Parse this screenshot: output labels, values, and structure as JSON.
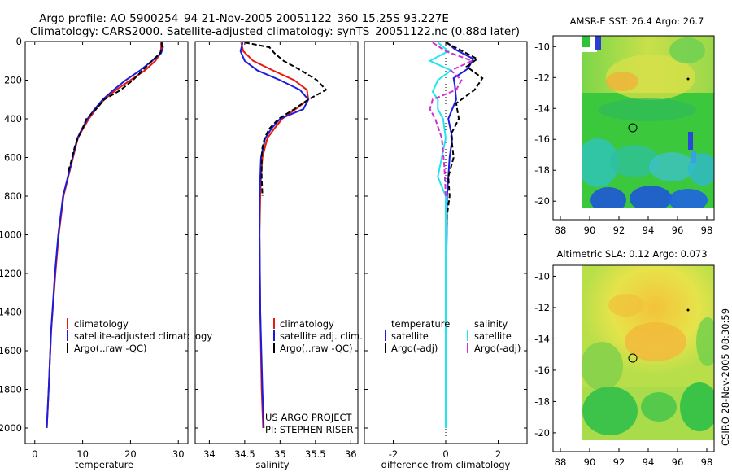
{
  "header": {
    "title_line1": "Argo profile: AO 5900254_94 21-Nov-2005 20051122_360 15.25S 93.227E",
    "title_line2": "Climatology: CARS2000. Satellite-adjusted climatology: synTS_20051122.nc (0.88d later)"
  },
  "colors": {
    "climatology": "#e8190f",
    "satellite": "#1c1cde",
    "argo": "#000000",
    "sat_salinity": "#22e6ee",
    "argo_salinity_adj": "#d22ed2"
  },
  "chart_data": [
    {
      "type": "line",
      "name": "temperature-profile",
      "xlabel": "temperature",
      "ylabel": "",
      "xlim": [
        -2,
        32
      ],
      "ylim": [
        0,
        2080
      ],
      "xticks": [
        0,
        10,
        20,
        30
      ],
      "yticks": [
        0,
        200,
        400,
        600,
        800,
        1000,
        1200,
        1400,
        1600,
        1800,
        2000
      ],
      "y_inverted": true,
      "legend": [
        "climatology",
        "satellite-adjusted climatology",
        "Argo(..raw -QC)"
      ],
      "series": [
        {
          "name": "climatology",
          "color": "#e8190f",
          "dash": "solid",
          "x": [
            26.4,
            26.4,
            26.3,
            25.2,
            23.0,
            20.0,
            17.0,
            14.5,
            12.8,
            11.3,
            10.1,
            9.0,
            8.0,
            7.0,
            6.0,
            5.0,
            4.3,
            3.4,
            2.9,
            2.5
          ],
          "y": [
            5,
            30,
            60,
            100,
            150,
            200,
            250,
            300,
            350,
            400,
            450,
            500,
            600,
            700,
            800,
            1000,
            1200,
            1500,
            1800,
            2000
          ]
        },
        {
          "name": "satellite-adjusted climatology",
          "color": "#1c1cde",
          "dash": "solid",
          "x": [
            26.6,
            26.8,
            26.4,
            24.5,
            22.0,
            19.0,
            16.5,
            14.2,
            12.5,
            11.0,
            9.9,
            8.9,
            7.9,
            6.9,
            5.9,
            4.9,
            4.2,
            3.4,
            2.9,
            2.5
          ],
          "y": [
            5,
            30,
            60,
            100,
            150,
            200,
            250,
            300,
            350,
            400,
            450,
            500,
            600,
            700,
            800,
            1000,
            1200,
            1500,
            1800,
            2000
          ]
        },
        {
          "name": "Argo(..raw -QC)",
          "color": "#000000",
          "dash": "dashed",
          "x": [
            26.5,
            26.6,
            26.2,
            24.5,
            22.5,
            20.5,
            18.0,
            14.5,
            12.8,
            10.8,
            10.0,
            9.0,
            8.3,
            7.6,
            6.9
          ],
          "y": [
            5,
            30,
            60,
            100,
            150,
            200,
            250,
            300,
            350,
            400,
            450,
            500,
            550,
            620,
            680
          ]
        }
      ]
    },
    {
      "type": "line",
      "name": "salinity-profile",
      "xlabel": "salinity",
      "ylabel": "",
      "xlim": [
        33.8,
        36.1
      ],
      "ylim": [
        0,
        2080
      ],
      "xticks": [
        34,
        34.5,
        35,
        35.5,
        36
      ],
      "y_inverted": true,
      "legend": [
        "climatology",
        "satellite adj. clim.",
        "Argo(..raw -QC)"
      ],
      "series": [
        {
          "name": "climatology",
          "color": "#e8190f",
          "dash": "solid",
          "x": [
            34.45,
            34.48,
            34.62,
            34.9,
            35.2,
            35.38,
            35.4,
            35.22,
            35.03,
            34.92,
            34.82,
            34.75,
            34.73,
            34.72,
            34.71,
            34.72,
            34.74,
            34.76
          ],
          "y": [
            5,
            50,
            100,
            150,
            200,
            250,
            300,
            350,
            400,
            450,
            500,
            600,
            700,
            800,
            1000,
            1400,
            1800,
            2000
          ]
        },
        {
          "name": "satellite adj. clim.",
          "color": "#1c1cde",
          "dash": "solid",
          "x": [
            34.47,
            34.44,
            34.5,
            34.68,
            35.0,
            35.28,
            35.4,
            35.33,
            35.0,
            34.88,
            34.79,
            34.73,
            34.72,
            34.71,
            34.71,
            34.72,
            34.75,
            34.77
          ],
          "y": [
            5,
            50,
            100,
            150,
            200,
            250,
            300,
            350,
            400,
            450,
            500,
            600,
            700,
            800,
            1000,
            1400,
            1800,
            2000
          ]
        },
        {
          "name": "Argo(..raw -QC)",
          "color": "#000000",
          "dash": "dashed",
          "x": [
            34.5,
            34.85,
            34.92,
            35.05,
            35.3,
            35.52,
            35.65,
            35.4,
            35.2,
            34.98,
            34.85,
            34.78,
            34.75,
            34.74,
            34.74,
            34.75
          ],
          "y": [
            5,
            30,
            60,
            100,
            150,
            200,
            250,
            300,
            350,
            400,
            450,
            500,
            550,
            600,
            700,
            800
          ]
        }
      ]
    },
    {
      "type": "line",
      "name": "difference-profile",
      "xlabel": "difference from climatology",
      "xlim": [
        -3.1,
        3.1
      ],
      "ylim": [
        0,
        2080
      ],
      "xticks": [
        -2,
        0,
        2
      ],
      "y_inverted": true,
      "legend_headers": [
        "temperature",
        "salinity"
      ],
      "legend": [
        "satellite",
        "Argo(-adj)",
        "satellite",
        "Argo(-adj)"
      ],
      "series": [
        {
          "name": "temperature satellite",
          "color": "#1c1cde",
          "dash": "solid",
          "x": [
            0.05,
            0.35,
            1.05,
            0.85,
            0.3,
            0.35,
            0.4,
            0.1,
            0.25,
            0.15,
            0.1,
            0.05,
            0.04,
            0.02,
            0.01,
            0.0
          ],
          "y": [
            5,
            40,
            90,
            140,
            190,
            230,
            300,
            400,
            500,
            600,
            700,
            800,
            1000,
            1200,
            1600,
            1950
          ]
        },
        {
          "name": "temperature Argo(-adj)",
          "color": "#000000",
          "dash": "dashed",
          "x": [
            0.0,
            0.5,
            1.2,
            0.8,
            1.4,
            1.1,
            0.4,
            0.5,
            0.2,
            0.3,
            0.1,
            0.15,
            0.05,
            0.02,
            0.0
          ],
          "y": [
            5,
            40,
            90,
            130,
            190,
            250,
            320,
            400,
            480,
            600,
            700,
            800,
            900,
            1000,
            1050
          ]
        },
        {
          "name": "salinity satellite",
          "color": "#22e6ee",
          "dash": "solid",
          "x": [
            -0.3,
            0.1,
            -0.6,
            0.2,
            -0.3,
            -0.5,
            -0.3,
            -0.3,
            -0.1,
            0.0,
            -0.3,
            0.0,
            0.0,
            0.0,
            0.0
          ],
          "y": [
            5,
            50,
            100,
            150,
            200,
            260,
            300,
            350,
            400,
            500,
            700,
            800,
            1000,
            1500,
            2000
          ]
        },
        {
          "name": "salinity Argo(-adj)",
          "color": "#d22ed2",
          "dash": "dashed",
          "x": [
            -0.5,
            0.0,
            1.0,
            0.2,
            0.6,
            0.4,
            -0.5,
            -0.6,
            -0.4,
            -0.15,
            -0.05,
            0.0
          ],
          "y": [
            5,
            50,
            100,
            150,
            200,
            250,
            300,
            350,
            400,
            500,
            650,
            800
          ]
        }
      ]
    },
    {
      "type": "heatmap",
      "name": "sst-map",
      "title": "AMSR-E SST: 26.4 Argo: 26.7",
      "xlim": [
        87.5,
        98.5
      ],
      "ylim": [
        -21.2,
        -9.3
      ],
      "xticks": [
        88,
        90,
        92,
        94,
        96,
        98
      ],
      "yticks": [
        -10,
        -12,
        -14,
        -16,
        -18,
        -20
      ],
      "marker": {
        "lon": 93.227,
        "lat": -15.25
      }
    },
    {
      "type": "heatmap",
      "name": "sla-map",
      "title": "Altimetric SLA: 0.12 Argo: 0.073",
      "xlim": [
        87.5,
        98.5
      ],
      "ylim": [
        -21.2,
        -9.3
      ],
      "xticks": [
        88,
        90,
        92,
        94,
        96,
        98
      ],
      "yticks": [
        -10,
        -12,
        -14,
        -16,
        -18,
        -20
      ],
      "marker": {
        "lon": 93.227,
        "lat": -15.25
      }
    }
  ],
  "footer": {
    "project": "US ARGO PROJECT",
    "pi": "PI: STEPHEN RISER",
    "credit": "CSIRO 28-Nov-2005 08:30:59"
  }
}
